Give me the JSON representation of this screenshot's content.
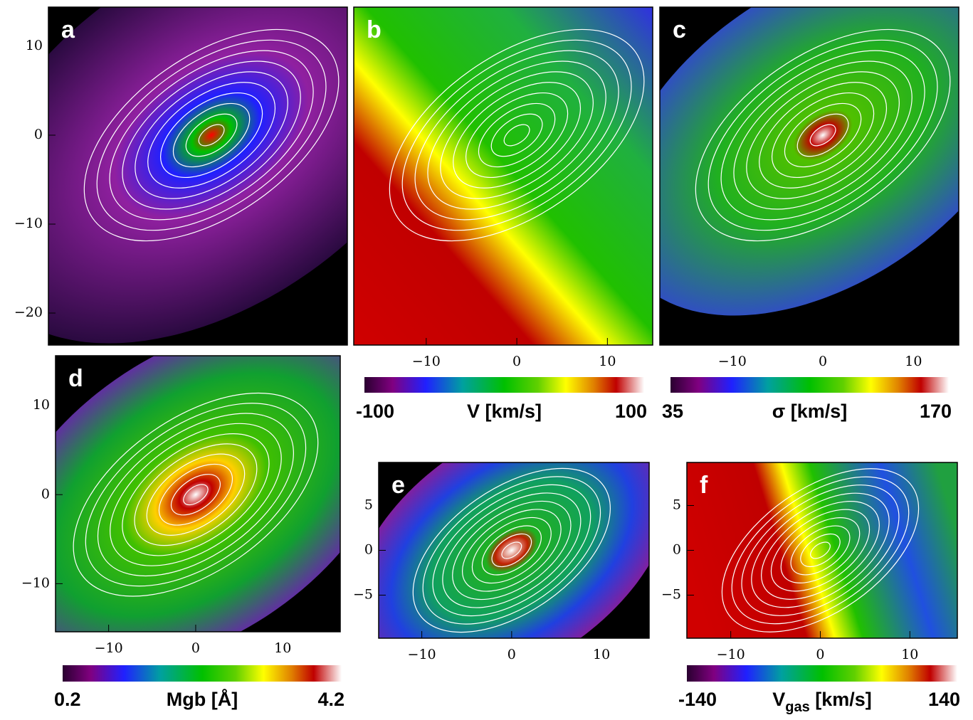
{
  "chart_data": [
    {
      "type": "map",
      "panel_label": "a",
      "xlim": [
        -18,
        15
      ],
      "ylim": [
        -23.6,
        14.4
      ],
      "yticks": [
        10,
        0,
        {
          "value": -10,
          "label": "−10"
        },
        {
          "value": -20,
          "label": "−20"
        }
      ]
    },
    {
      "type": "map",
      "panel_label": "b",
      "xlim": [
        -18,
        15
      ],
      "ylim": [
        -23.6,
        14.4
      ],
      "xticks": [
        {
          "value": -10,
          "label": "−10"
        },
        0,
        10
      ],
      "colorbar": {
        "title_parts": [
          "V [km/s]"
        ],
        "range": [
          -100,
          100
        ]
      }
    },
    {
      "type": "map",
      "panel_label": "c",
      "xlim": [
        -18,
        15
      ],
      "ylim": [
        -23.6,
        14.4
      ],
      "xticks": [
        {
          "value": -10,
          "label": "−10"
        },
        0,
        10
      ],
      "colorbar": {
        "title_parts": [
          "σ [km/s]"
        ],
        "range": [
          35,
          170
        ]
      }
    },
    {
      "type": "map",
      "panel_label": "d",
      "xlim": [
        -16.1,
        16.6
      ],
      "ylim": [
        -15.4,
        15.6
      ],
      "xticks": [
        {
          "value": -10,
          "label": "−10"
        },
        0,
        10
      ],
      "yticks": [
        10,
        0,
        {
          "value": -10,
          "label": "−10"
        }
      ],
      "colorbar": {
        "title_parts": [
          "Mgb [Å]"
        ],
        "range": [
          0.2,
          4.2
        ]
      }
    },
    {
      "type": "map",
      "panel_label": "e",
      "xlim": [
        -14.8,
        15.3
      ],
      "ylim": [
        -9.8,
        9.8
      ],
      "xticks": [
        {
          "value": -10,
          "label": "−10"
        },
        0,
        10
      ],
      "yticks": [
        5,
        0,
        {
          "value": -5,
          "label": "−5"
        }
      ]
    },
    {
      "type": "map",
      "panel_label": "f",
      "xlim": [
        -14.9,
        15.3
      ],
      "ylim": [
        -9.8,
        9.8
      ],
      "xticks": [
        {
          "value": -10,
          "label": "−10"
        },
        0,
        10
      ],
      "yticks": [
        5,
        0,
        {
          "value": -5,
          "label": "−5"
        }
      ],
      "colorbar": {
        "title_parts": [
          "V",
          "gas",
          " [km/s]"
        ],
        "range": [
          -140,
          140
        ]
      }
    }
  ]
}
